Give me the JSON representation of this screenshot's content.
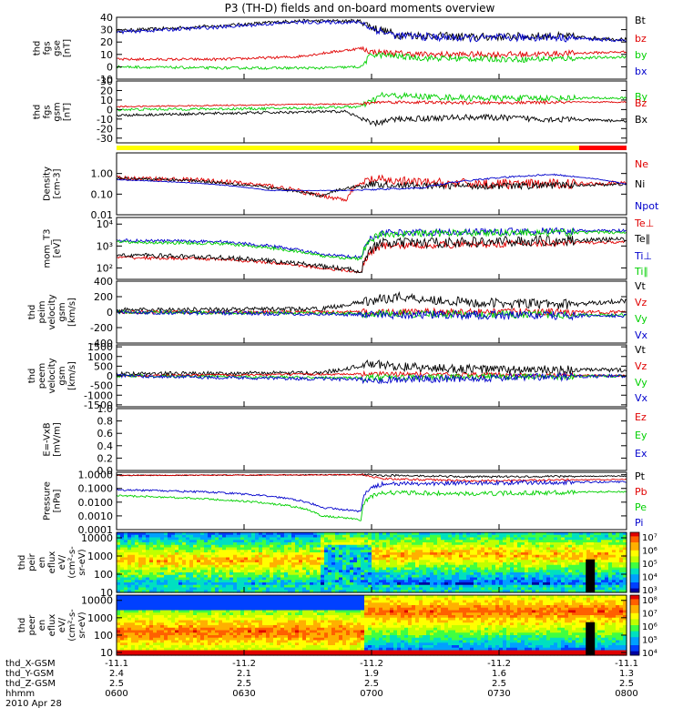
{
  "title": "P3 (TH-D) fields and on-board moments overview",
  "colors": {
    "black": "#000000",
    "red": "#e00000",
    "green": "#00d000",
    "blue": "#0000cc",
    "yellow": "#ffff00",
    "bar_red": "#ff0000"
  },
  "chart_data": [
    {
      "type": "line",
      "name": "fgs-gse",
      "ylabel": [
        "thd",
        "fgs",
        "gse",
        "[nT]"
      ],
      "ylim": [
        -10,
        40
      ],
      "ticks": [
        "40",
        "30",
        "20",
        "10",
        "0",
        "-10"
      ],
      "tick_values": [
        40,
        30,
        20,
        10,
        0,
        -10
      ],
      "legend": [
        "Bt",
        "bz",
        "by",
        "bx"
      ],
      "series": [
        {
          "name": "Bt",
          "color": "#000000",
          "x": [
            0,
            0.2,
            0.35,
            0.48,
            0.5,
            0.55,
            0.7,
            0.85,
            1
          ],
          "y": [
            29,
            33,
            37,
            37,
            32,
            26,
            24,
            25,
            22
          ],
          "noise": 4
        },
        {
          "name": "bz",
          "color": "#e00000",
          "x": [
            0,
            0.2,
            0.35,
            0.48,
            0.5,
            0.6,
            0.8,
            1
          ],
          "y": [
            6,
            6,
            8,
            15,
            12,
            10,
            10,
            12
          ],
          "noise": 3
        },
        {
          "name": "by",
          "color": "#00d000",
          "x": [
            0,
            0.2,
            0.4,
            0.48,
            0.5,
            0.6,
            0.8,
            1
          ],
          "y": [
            0,
            -1,
            -1,
            0,
            10,
            7,
            6,
            8
          ],
          "noise": 3
        },
        {
          "name": "bx",
          "color": "#0000cc",
          "x": [
            0,
            0.2,
            0.35,
            0.48,
            0.5,
            0.55,
            0.7,
            0.85,
            1
          ],
          "y": [
            28,
            32,
            36,
            36,
            31,
            25,
            23,
            24,
            21
          ],
          "noise": 4
        }
      ]
    },
    {
      "type": "line",
      "name": "fgs-gsm",
      "ylabel": [
        "thd",
        "fgs",
        "gsm",
        "[nT]"
      ],
      "ylim": [
        -35,
        30
      ],
      "ticks": [
        "30",
        "20",
        "10",
        "0",
        "-10",
        "-20",
        "-30"
      ],
      "tick_values": [
        30,
        20,
        10,
        0,
        -10,
        -20,
        -30
      ],
      "legend": [
        "By",
        "Bz",
        "Bx"
      ],
      "series": [
        {
          "name": "By",
          "color": "#00d000",
          "x": [
            0,
            0.3,
            0.48,
            0.52,
            0.7,
            1
          ],
          "y": [
            0,
            1,
            3,
            15,
            12,
            12
          ],
          "noise": 4
        },
        {
          "name": "Bz",
          "color": "#e00000",
          "x": [
            0,
            0.3,
            0.48,
            0.52,
            0.7,
            1
          ],
          "y": [
            3,
            5,
            6,
            8,
            7,
            8
          ],
          "noise": 2
        },
        {
          "name": "Bx",
          "color": "#000000",
          "x": [
            0,
            0.2,
            0.45,
            0.5,
            0.55,
            0.7,
            1
          ],
          "y": [
            -6,
            -4,
            -2,
            -15,
            -10,
            -8,
            -12
          ],
          "noise": 4
        }
      ]
    },
    {
      "type": "line",
      "name": "density",
      "scale": "log",
      "ylabel": [
        "Density",
        "[cm-3]"
      ],
      "ylim": [
        0.01,
        10
      ],
      "ticks": [
        "1.00",
        "0.10",
        "0.01"
      ],
      "tick_values": [
        1,
        0.1,
        0.01
      ],
      "legend": [
        "Ne",
        "Ni",
        "Npot"
      ],
      "series": [
        {
          "name": "Ne",
          "color": "#e00000",
          "x": [
            0,
            0.15,
            0.3,
            0.38,
            0.45,
            0.5,
            0.6,
            0.8,
            1
          ],
          "y": [
            0.6,
            0.5,
            0.25,
            0.1,
            0.05,
            0.5,
            0.35,
            0.3,
            0.35
          ],
          "noise": 0.3
        },
        {
          "name": "Ni",
          "color": "#000000",
          "x": [
            0,
            0.15,
            0.3,
            0.4,
            0.5,
            0.6,
            0.8,
            1
          ],
          "y": [
            0.6,
            0.45,
            0.2,
            0.08,
            0.3,
            0.25,
            0.25,
            0.3
          ],
          "noise": 0.2
        },
        {
          "name": "Npot",
          "color": "#0000cc",
          "x": [
            0,
            0.15,
            0.3,
            0.45,
            0.6,
            0.85,
            1
          ],
          "y": [
            0.5,
            0.35,
            0.15,
            0.15,
            0.2,
            0.9,
            0.3
          ],
          "noise": 0.05
        }
      ]
    },
    {
      "type": "line",
      "name": "temperature",
      "scale": "log",
      "ylabel": [
        "mom_T3",
        "[eV]"
      ],
      "ylim": [
        30,
        20000
      ],
      "ticks": [
        "10⁴",
        "10³",
        "10²"
      ],
      "tick_values": [
        10000,
        1000,
        100
      ],
      "legend": [
        "Te⊥",
        "Te∥",
        "Ti⊥",
        "Ti∥"
      ],
      "series": [
        {
          "name": "Te⊥",
          "color": "#e00000",
          "x": [
            0,
            0.2,
            0.4,
            0.48,
            0.52,
            0.7,
            1
          ],
          "y": [
            300,
            250,
            100,
            60,
            1000,
            1200,
            1500
          ],
          "noise": 0.2
        },
        {
          "name": "Te∥",
          "color": "#000000",
          "x": [
            0,
            0.2,
            0.4,
            0.48,
            0.52,
            0.7,
            1
          ],
          "y": [
            400,
            300,
            120,
            70,
            1300,
            1500,
            2000
          ],
          "noise": 0.3
        },
        {
          "name": "Ti⊥",
          "color": "#0000cc",
          "x": [
            0,
            0.2,
            0.4,
            0.48,
            0.52,
            0.7,
            1
          ],
          "y": [
            1800,
            1600,
            400,
            300,
            4000,
            4500,
            5000
          ],
          "noise": 0.2
        },
        {
          "name": "Ti∥",
          "color": "#00d000",
          "x": [
            0,
            0.2,
            0.4,
            0.48,
            0.52,
            0.7,
            1
          ],
          "y": [
            1500,
            1300,
            350,
            250,
            3500,
            4000,
            4200
          ],
          "noise": 0.2
        }
      ]
    },
    {
      "type": "line",
      "name": "peim-velocity",
      "ylabel": [
        "thd",
        "peim",
        "velocity",
        "gsm",
        "[km/s]"
      ],
      "ylim": [
        -400,
        400
      ],
      "ticks": [
        "400",
        "200",
        "0",
        "-200",
        "-400"
      ],
      "tick_values": [
        400,
        200,
        0,
        -200,
        -400
      ],
      "legend": [
        "Vt",
        "Vz",
        "Vy",
        "Vx"
      ],
      "series": [
        {
          "name": "Vt",
          "color": "#000000",
          "x": [
            0,
            0.4,
            0.5,
            0.55,
            0.7,
            0.9,
            1
          ],
          "y": [
            30,
            40,
            150,
            200,
            120,
            100,
            150
          ],
          "noise": 80
        },
        {
          "name": "Vz",
          "color": "#e00000",
          "x": [
            0,
            0.5,
            1
          ],
          "y": [
            0,
            0,
            0
          ],
          "noise": 60
        },
        {
          "name": "Vy",
          "color": "#00d000",
          "x": [
            0,
            0.5,
            1
          ],
          "y": [
            0,
            -20,
            -40
          ],
          "noise": 60
        },
        {
          "name": "Vx",
          "color": "#0000cc",
          "x": [
            0,
            0.5,
            1
          ],
          "y": [
            0,
            -30,
            -50
          ],
          "noise": 70
        }
      ]
    },
    {
      "type": "line",
      "name": "peem-velocity",
      "ylabel": [
        "thd",
        "peem",
        "velocity",
        "gsm",
        "[km/s]"
      ],
      "ylim": [
        -1600,
        1600
      ],
      "ticks": [
        "1500",
        "1000",
        "500",
        "0",
        "-500",
        "-1000",
        "-1500"
      ],
      "tick_values": [
        1500,
        1000,
        500,
        0,
        -500,
        -1000,
        -1500
      ],
      "legend": [
        "Vt",
        "Vz",
        "Vy",
        "Vx"
      ],
      "series": [
        {
          "name": "Vt",
          "color": "#000000",
          "x": [
            0,
            0.4,
            0.5,
            0.6,
            0.8,
            1
          ],
          "y": [
            100,
            150,
            600,
            400,
            300,
            300
          ],
          "noise": 300
        },
        {
          "name": "Vz",
          "color": "#e00000",
          "x": [
            0,
            0.5,
            1
          ],
          "y": [
            0,
            100,
            0
          ],
          "noise": 150
        },
        {
          "name": "Vy",
          "color": "#00d000",
          "x": [
            0,
            0.5,
            1
          ],
          "y": [
            0,
            -100,
            0
          ],
          "noise": 200
        },
        {
          "name": "Vx",
          "color": "#0000cc",
          "x": [
            0,
            0.5,
            1
          ],
          "y": [
            0,
            -200,
            0
          ],
          "noise": 250
        }
      ]
    },
    {
      "type": "line",
      "name": "e-field",
      "ylabel": [
        "E=-VxB",
        "[mV/m]"
      ],
      "ylim": [
        0,
        1
      ],
      "ticks": [
        "1.0",
        "0.8",
        "0.6",
        "0.4",
        "0.2",
        "0.0"
      ],
      "tick_values": [
        1,
        0.8,
        0.6,
        0.4,
        0.2,
        0
      ],
      "legend": [
        "Ez",
        "Ey",
        "Ex"
      ],
      "series": []
    },
    {
      "type": "line",
      "name": "pressure",
      "scale": "log",
      "ylabel": [
        "Pressure",
        "[nPa]"
      ],
      "ylim": [
        0.0001,
        1.5
      ],
      "ticks": [
        "1.0000",
        "0.1000",
        "0.0100",
        "0.0010",
        "0.0001"
      ],
      "tick_values": [
        1,
        0.1,
        0.01,
        0.001,
        0.0001
      ],
      "legend": [
        "Pt",
        "Pb",
        "Pe",
        "Pi"
      ],
      "series": [
        {
          "name": "Pt",
          "color": "#000000",
          "x": [
            0,
            0.3,
            0.48,
            0.52,
            0.7,
            1
          ],
          "y": [
            0.9,
            0.95,
            1.0,
            0.9,
            0.7,
            0.8
          ],
          "noise": 0.1
        },
        {
          "name": "Pb",
          "color": "#e00000",
          "x": [
            0,
            0.3,
            0.48,
            0.52,
            0.7,
            1
          ],
          "y": [
            0.9,
            0.95,
            1.0,
            0.5,
            0.35,
            0.45
          ],
          "noise": 0.1
        },
        {
          "name": "Pe",
          "color": "#00d000",
          "x": [
            0,
            0.2,
            0.4,
            0.48,
            0.52,
            0.7,
            1
          ],
          "y": [
            0.03,
            0.015,
            0.001,
            0.0005,
            0.05,
            0.04,
            0.06
          ],
          "noise": 0.2
        },
        {
          "name": "Pi",
          "color": "#0000cc",
          "x": [
            0,
            0.2,
            0.4,
            0.48,
            0.52,
            0.7,
            1
          ],
          "y": [
            0.08,
            0.05,
            0.004,
            0.002,
            0.2,
            0.25,
            0.3
          ],
          "noise": 0.2
        }
      ]
    },
    {
      "type": "heatmap",
      "name": "peir-spectrogram",
      "scale": "log",
      "ylabel": [
        "thd",
        "peir",
        "en",
        "eflux",
        "eV/",
        "(cm²-s-",
        "sr-eV)"
      ],
      "ylim": [
        10,
        20000
      ],
      "ticks": [
        "10000",
        "1000",
        "100",
        "10"
      ],
      "tick_values": [
        10000,
        1000,
        100,
        10
      ],
      "colorbar_ticks": [
        "10⁷",
        "10⁶",
        "10⁵",
        "10⁴",
        "10³"
      ]
    },
    {
      "type": "heatmap",
      "name": "peer-spectrogram",
      "scale": "log",
      "ylabel": [
        "thd",
        "peer",
        "en",
        "eflux",
        "eV/",
        "(cm²-s-",
        "sr-eV)"
      ],
      "ylim": [
        7,
        20000
      ],
      "ticks": [
        "10000",
        "1000",
        "100",
        "10"
      ],
      "tick_values": [
        10000,
        1000,
        100,
        10
      ],
      "colorbar_ticks": [
        "10⁸",
        "10⁷",
        "10⁶",
        "10⁵",
        "10⁴"
      ]
    }
  ],
  "xaxis": {
    "row_labels": [
      "thd_X-GSM",
      "thd_Y-GSM",
      "thd_Z-GSM",
      "hhmm",
      "2010 Apr 28"
    ],
    "columns": [
      {
        "x": "-11.1",
        "y": "2.4",
        "z": "2.5",
        "t": "0600"
      },
      {
        "x": "-11.2",
        "y": "2.1",
        "z": "2.5",
        "t": "0630"
      },
      {
        "x": "-11.2",
        "y": "1.9",
        "z": "2.5",
        "t": "0700"
      },
      {
        "x": "-11.2",
        "y": "1.6",
        "z": "2.5",
        "t": "0730"
      },
      {
        "x": "-11.1",
        "y": "1.3",
        "z": "2.5",
        "t": "0800"
      }
    ]
  }
}
